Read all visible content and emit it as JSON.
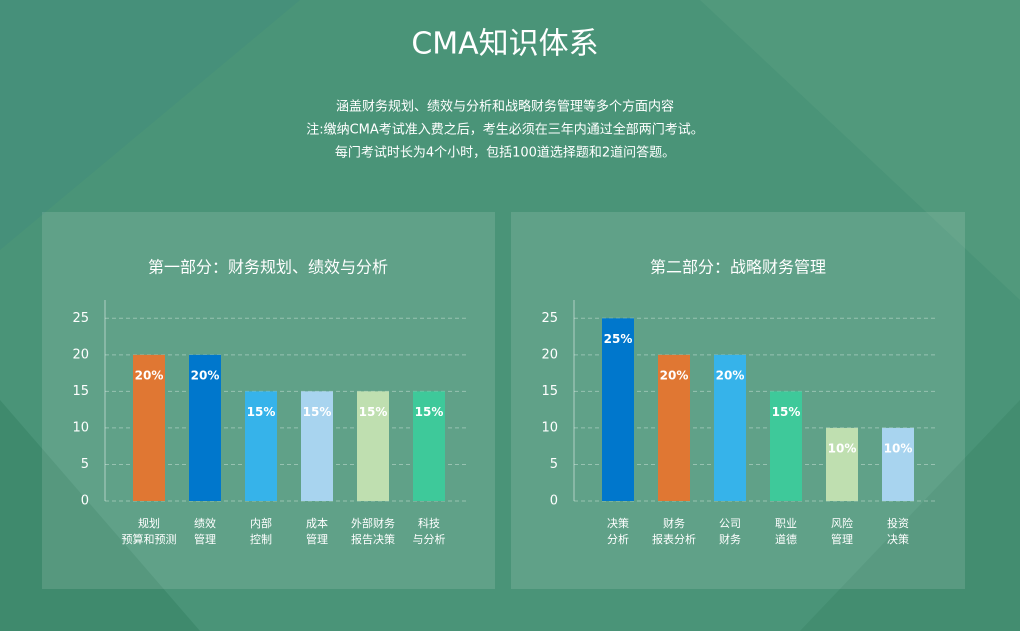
{
  "header": {
    "title": "CMA知识体系",
    "subtitle": [
      "涵盖财务规划、绩效与分析和战略财务管理等多个方面内容",
      "注:缴纳CMA考试准入费之后，考生必须在三年内通过全部两门考试。",
      "每门考试时长为4个小时，包括100道选择题和2道问答题。"
    ]
  },
  "chart_data": [
    {
      "type": "bar",
      "title": "第一部分：财务规划、绩效与分析",
      "categories": [
        [
          "规划",
          "预算和预测"
        ],
        [
          "绩效",
          "管理"
        ],
        [
          "内部",
          "控制"
        ],
        [
          "成本",
          "管理"
        ],
        [
          "外部财务",
          "报告决策"
        ],
        [
          "科技",
          "与分析"
        ]
      ],
      "values": [
        20,
        20,
        15,
        15,
        15,
        15
      ],
      "value_labels": [
        "20%",
        "20%",
        "15%",
        "15%",
        "15%",
        "15%"
      ],
      "colors": [
        "#e07733",
        "#0077cc",
        "#36b3ea",
        "#a8d4ef",
        "#bfdfb0",
        "#3ec99a"
      ],
      "ylim": [
        0,
        27.5
      ],
      "yticks": [
        0,
        5,
        10,
        15,
        20,
        25
      ],
      "grid": true
    },
    {
      "type": "bar",
      "title": "第二部分：战略财务管理",
      "categories": [
        [
          "决策",
          "分析"
        ],
        [
          "财务",
          "报表分析"
        ],
        [
          "公司",
          "财务"
        ],
        [
          "职业",
          "道德"
        ],
        [
          "风险",
          "管理"
        ],
        [
          "投资",
          "决策"
        ]
      ],
      "values": [
        25,
        20,
        20,
        15,
        10,
        10
      ],
      "value_labels": [
        "25%",
        "20%",
        "20%",
        "15%",
        "10%",
        "10%"
      ],
      "colors": [
        "#0077cc",
        "#e07733",
        "#36b3ea",
        "#3ec99a",
        "#bfdfb0",
        "#a8d4ef"
      ],
      "ylim": [
        0,
        27.5
      ],
      "yticks": [
        0,
        5,
        10,
        15,
        20,
        25
      ],
      "grid": true
    }
  ]
}
